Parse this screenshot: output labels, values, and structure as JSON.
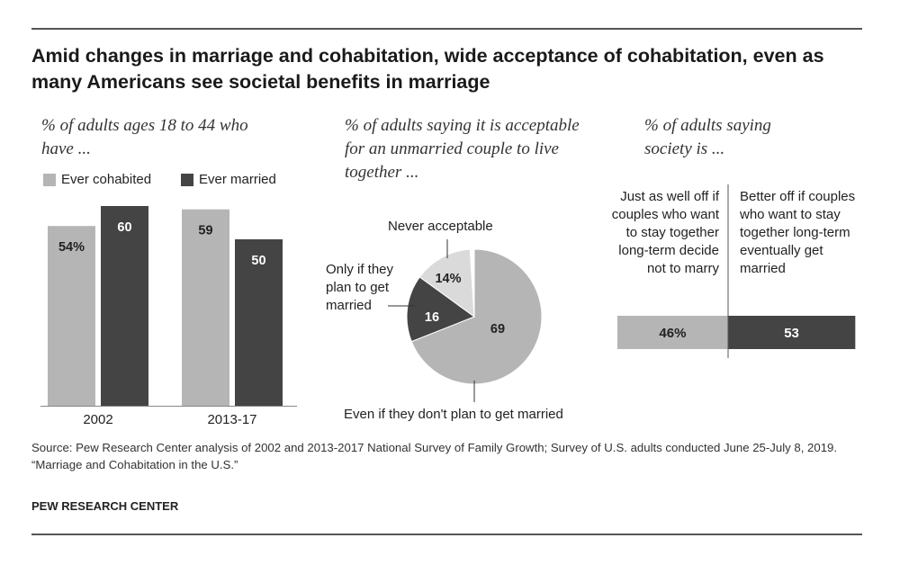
{
  "title": "Amid changes in marriage and cohabitation, wide acceptance of cohabitation, even as many Americans see societal benefits in marriage",
  "colors": {
    "light": "#b5b5b5",
    "dark": "#444444",
    "faint": "#dadada",
    "line": "#555555"
  },
  "chart_data": [
    {
      "type": "bar",
      "subtitle": "% of adults ages 18 to 44 who have ...",
      "categories": [
        "2002",
        "2013-17"
      ],
      "series": [
        {
          "name": "Ever cohabited",
          "values": [
            54,
            59
          ],
          "labels": [
            "54%",
            "59"
          ]
        },
        {
          "name": "Ever married",
          "values": [
            60,
            50
          ],
          "labels": [
            "60",
            "50"
          ]
        }
      ],
      "ylim": [
        0,
        60
      ],
      "legend": "top",
      "grid": false
    },
    {
      "type": "pie",
      "subtitle": "% of adults saying it is acceptable for an unmarried couple to live together ...",
      "slices": [
        {
          "label": "Even if they don't plan to get married",
          "value": 69,
          "value_label": "69"
        },
        {
          "label": "Only if they plan to get married",
          "value": 16,
          "value_label": "16"
        },
        {
          "label": "Never acceptable",
          "value": 14,
          "value_label": "14%"
        },
        {
          "label": "",
          "value": 1,
          "value_label": ""
        }
      ]
    },
    {
      "type": "bar",
      "orientation": "horizontal-stacked",
      "subtitle": "% of adults saying society is ...",
      "segments": [
        {
          "label": "Just as well off if couples who want to stay together long-term decide not to marry",
          "value": 46,
          "value_label": "46%"
        },
        {
          "label": "Better off if couples who want to stay together long-term eventually get married",
          "value": 53,
          "value_label": "53"
        }
      ]
    }
  ],
  "notes": {
    "source": "Source: Pew Research Center analysis of 2002 and 2013-2017 National Survey of Family Growth; Survey of U.S. adults conducted June 25-July 8, 2019.",
    "report": "“Marriage and Cohabitation in the U.S.”",
    "brand": "PEW RESEARCH CENTER"
  }
}
